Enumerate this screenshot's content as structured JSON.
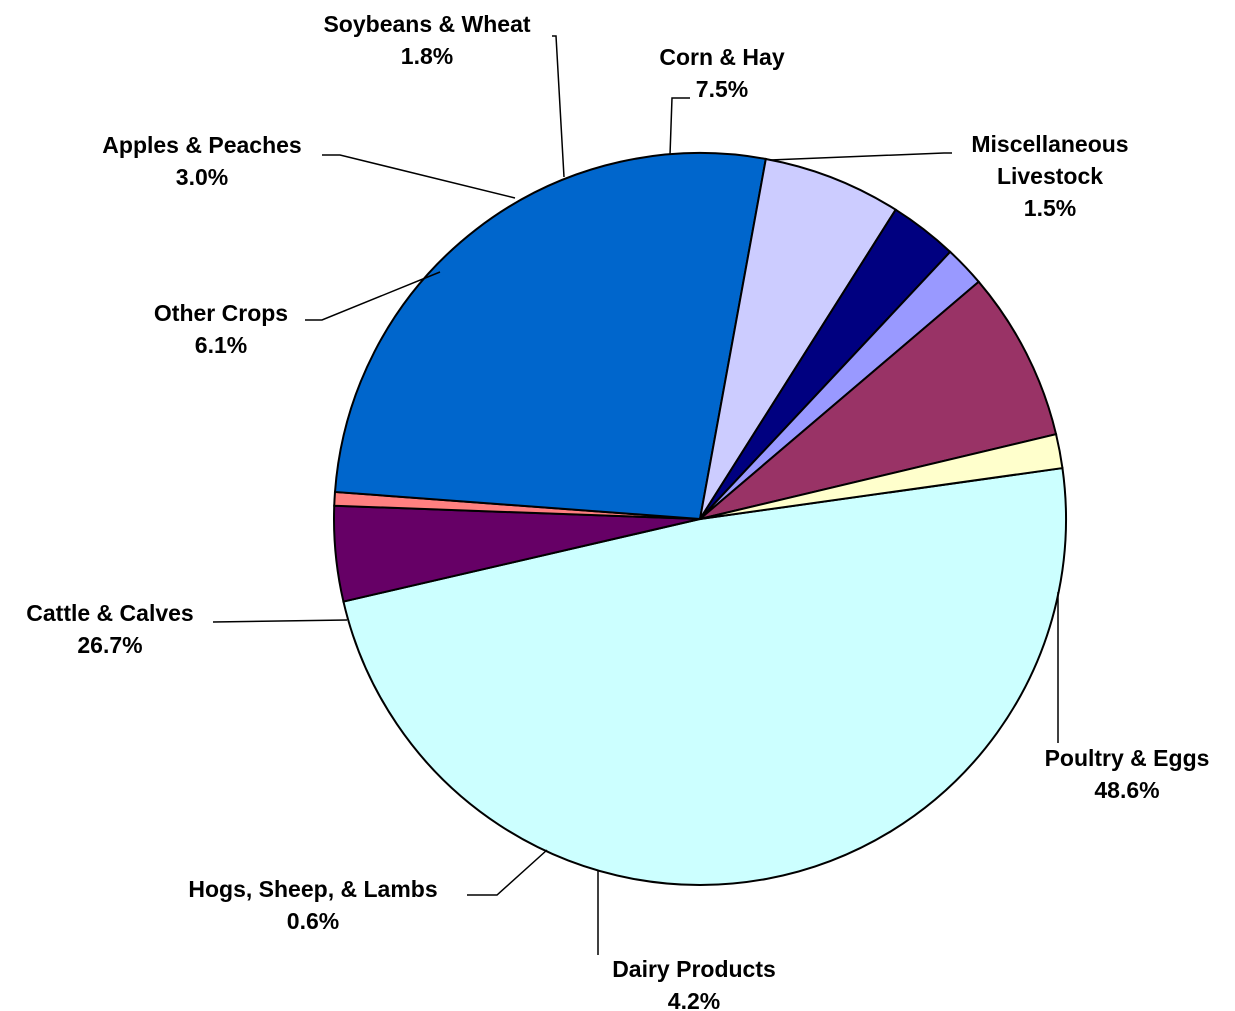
{
  "chart_data": {
    "type": "pie",
    "title": "",
    "slices": [
      {
        "label": "Poultry & Eggs",
        "value": 48.6,
        "display": "48.6%",
        "color": "#CCFFFF"
      },
      {
        "label": "Dairy Products",
        "value": 4.2,
        "display": "4.2%",
        "color": "#660066"
      },
      {
        "label": "Hogs, Sheep, & Lambs",
        "value": 0.6,
        "display": "0.6%",
        "color": "#FF8080"
      },
      {
        "label": "Cattle & Calves",
        "value": 26.7,
        "display": "26.7%",
        "color": "#0066CC"
      },
      {
        "label": "Other Crops",
        "value": 6.1,
        "display": "6.1%",
        "color": "#CCCCFF"
      },
      {
        "label": "Apples & Peaches",
        "value": 3.0,
        "display": "3.0%",
        "color": "#000080"
      },
      {
        "label": "Soybeans & Wheat",
        "value": 1.8,
        "display": "1.8%",
        "color": "#9999FF"
      },
      {
        "label": "Corn & Hay",
        "value": 7.5,
        "display": "7.5%",
        "color": "#993366"
      },
      {
        "label": "Miscellaneous Livestock",
        "label_lines": [
          "Miscellaneous",
          "Livestock"
        ],
        "value": 1.5,
        "display": "1.5%",
        "color": "#FFFFCC"
      }
    ],
    "legend": "none",
    "data_labels": "outside with leader lines"
  }
}
